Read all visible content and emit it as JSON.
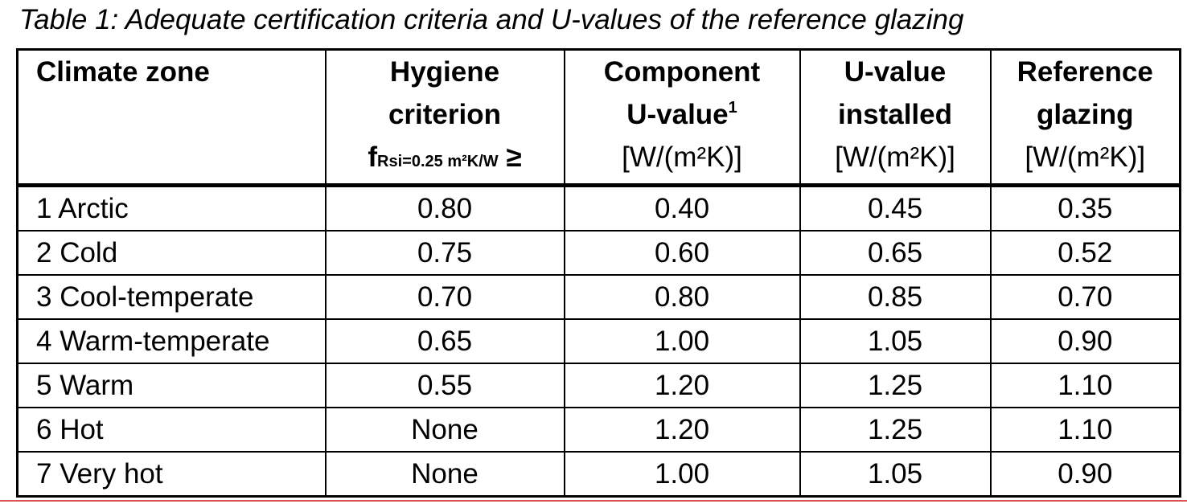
{
  "caption": "Table 1: Adequate certification criteria and U-values of the reference glazing",
  "headers": {
    "zone": "Climate zone",
    "hygiene_l1": "Hygiene",
    "hygiene_l2": "criterion",
    "hygiene_f": "f",
    "hygiene_sub": "Rsi=0.25 m²K/W",
    "hygiene_ge": " ≥",
    "component_l1": "Component",
    "component_l2": "U-value",
    "component_sup": "1",
    "component_unit": "[W/(m²K)]",
    "installed_l1": "U-value",
    "installed_l2": "installed",
    "installed_unit": "[W/(m²K)]",
    "reference_l1": "Reference",
    "reference_l2": "glazing",
    "reference_unit": "[W/(m²K)]"
  },
  "rows": [
    {
      "zone": "1 Arctic",
      "hygiene": "0.80",
      "component": "0.40",
      "installed": "0.45",
      "reference": "0.35"
    },
    {
      "zone": "2 Cold",
      "hygiene": "0.75",
      "component": "0.60",
      "installed": "0.65",
      "reference": "0.52"
    },
    {
      "zone": "3 Cool-temperate",
      "hygiene": "0.70",
      "component": "0.80",
      "installed": "0.85",
      "reference": "0.70"
    },
    {
      "zone": "4 Warm-temperate",
      "hygiene": "0.65",
      "component": "1.00",
      "installed": "1.05",
      "reference": "0.90"
    },
    {
      "zone": "5 Warm",
      "hygiene": "0.55",
      "component": "1.20",
      "installed": "1.25",
      "reference": "1.10"
    },
    {
      "zone": "6 Hot",
      "hygiene": "None",
      "component": "1.20",
      "installed": "1.25",
      "reference": "1.10"
    },
    {
      "zone": "7 Very hot",
      "hygiene": "None",
      "component": "1.00",
      "installed": "1.05",
      "reference": "0.90"
    }
  ]
}
